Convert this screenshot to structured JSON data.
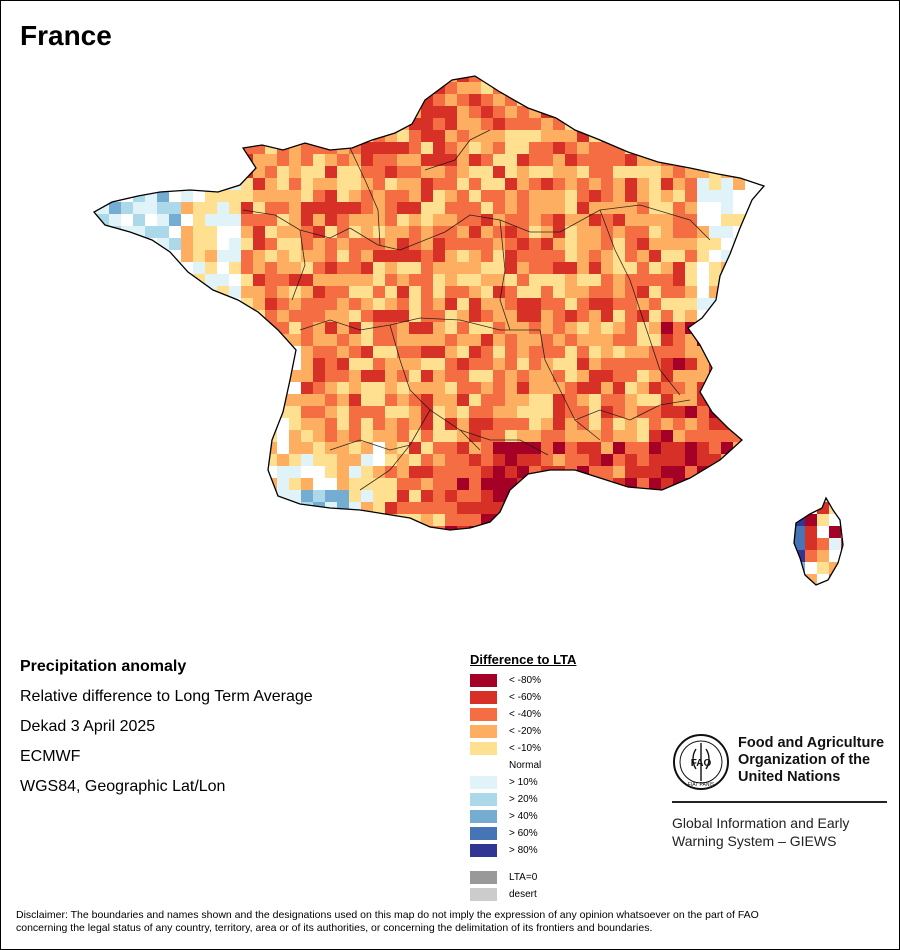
{
  "map": {
    "title": "France"
  },
  "info": {
    "line1": "Precipitation anomaly",
    "line2": "Relative difference to Long Term Average",
    "line3": "Dekad 3 April 2025",
    "line4": "ECMWF",
    "line5": "WGS84, Geographic Lat/Lon"
  },
  "legend": {
    "title": "Difference to LTA",
    "items": [
      {
        "label": "< -80%",
        "color": "#a50026"
      },
      {
        "label": "< -60%",
        "color": "#d73027"
      },
      {
        "label": "< -40%",
        "color": "#f46d43"
      },
      {
        "label": "< -20%",
        "color": "#fdae61"
      },
      {
        "label": "< -10%",
        "color": "#fee090"
      },
      {
        "label": "Normal",
        "color": "#ffffff"
      },
      {
        "label": "> 10%",
        "color": "#e0f3f8"
      },
      {
        "label": "> 20%",
        "color": "#abd9e9"
      },
      {
        "label": "> 40%",
        "color": "#74add1"
      },
      {
        "label": "> 60%",
        "color": "#4575b4"
      },
      {
        "label": "> 80%",
        "color": "#313695"
      }
    ],
    "extra": [
      {
        "label": "LTA=0",
        "color": "#999999"
      },
      {
        "label": "desert",
        "color": "#cccccc"
      }
    ]
  },
  "fao": {
    "logo_text": "FAO",
    "logo_motto": "FIAT PANIS",
    "name_line1": "Food and Agriculture",
    "name_line2": "Organization of the",
    "name_line3": "United Nations",
    "giews_line1": "Global Information and Early",
    "giews_line2": "Warning System – GIEWS"
  },
  "disclaimer": {
    "line1": "Disclaimer: The boundaries and names shown and the designations used on this map do not imply the expression of any opinion whatsoever on the part of FAO",
    "line2": "concerning the legal status of any country, territory, area or of its authorities, or concerning the delimitation of its frontiers and boundaries."
  }
}
